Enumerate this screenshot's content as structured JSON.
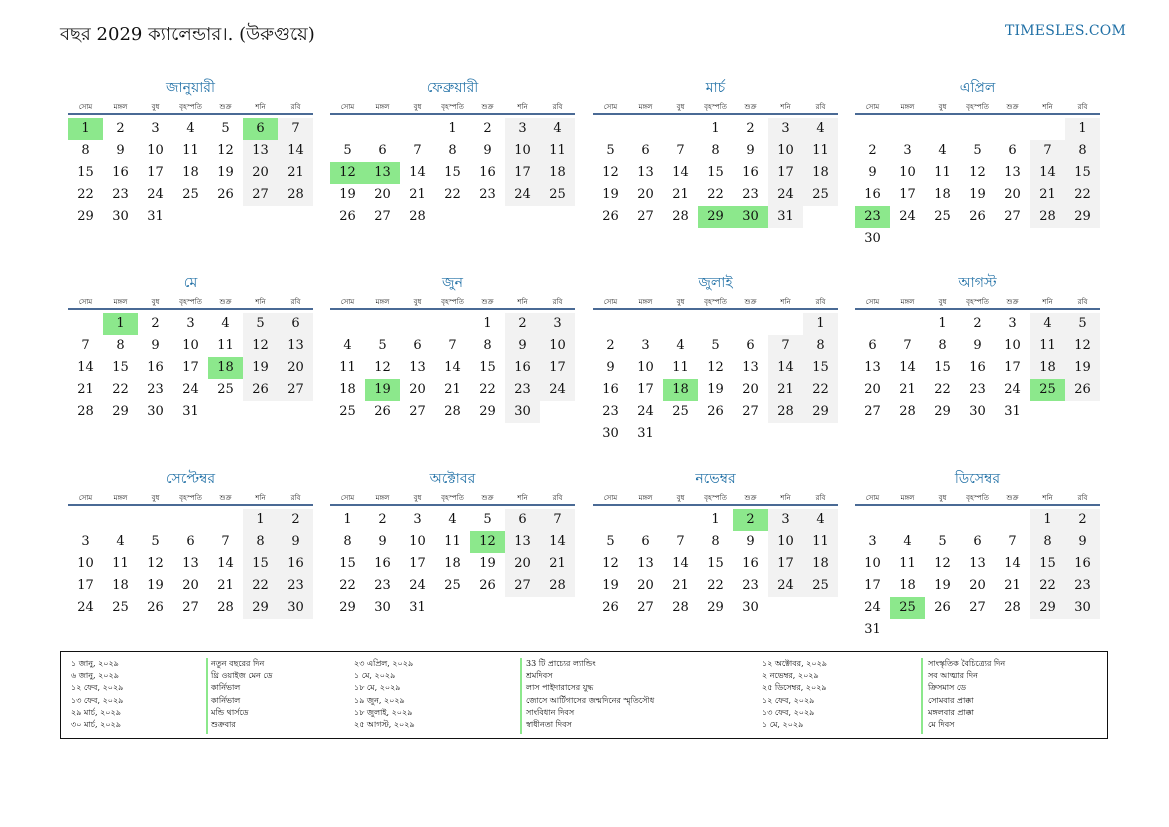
{
  "header": {
    "title": "বছর 2029 ক্যালেন্ডার।. (উরুগুয়ে)",
    "site": "TIMESLES.COM"
  },
  "weekdays": [
    "সোম",
    "মঙ্গল",
    "বুধ",
    "বৃহস্পতি",
    "শুক্র",
    "শনি",
    "রবি"
  ],
  "months": [
    {
      "name": "জানুয়ারী",
      "start": 0,
      "days": 31,
      "holidays": [
        1,
        6
      ]
    },
    {
      "name": "ফেব্রুয়ারী",
      "start": 3,
      "days": 28,
      "holidays": [
        12,
        13
      ]
    },
    {
      "name": "মার্চ",
      "start": 3,
      "days": 31,
      "holidays": [
        29,
        30
      ]
    },
    {
      "name": "এপ্রিল",
      "start": 6,
      "days": 30,
      "holidays": [
        23
      ]
    },
    {
      "name": "মে",
      "start": 1,
      "days": 31,
      "holidays": [
        1,
        18
      ]
    },
    {
      "name": "জুন",
      "start": 4,
      "days": 30,
      "holidays": [
        19
      ]
    },
    {
      "name": "জুলাই",
      "start": 6,
      "days": 31,
      "holidays": [
        18
      ]
    },
    {
      "name": "আগস্ট",
      "start": 2,
      "days": 31,
      "holidays": [
        25
      ]
    },
    {
      "name": "সেপ্টেম্বর",
      "start": 5,
      "days": 30,
      "holidays": []
    },
    {
      "name": "অক্টোবর",
      "start": 0,
      "days": 31,
      "holidays": [
        12
      ]
    },
    {
      "name": "নভেম্বর",
      "start": 3,
      "days": 30,
      "holidays": [
        2
      ]
    },
    {
      "name": "ডিসেম্বর",
      "start": 5,
      "days": 31,
      "holidays": [
        25
      ]
    }
  ],
  "legend": [
    {
      "dates": [
        "১ জানু, ২০২৯",
        "৬ জানু, ২০২৯",
        "১২ ফেব, ২০২৯",
        "১৩ ফেব, ২০২৯",
        "২৯ মার্চ, ২০২৯",
        "৩০ মার্চ, ২০২৯"
      ],
      "names": [
        "নতুন বছরের দিন",
        "থ্রি ওয়াইজ মেন ডে",
        "কার্নিভাল",
        "কার্নিভাল",
        "মন্ডি থার্সডে",
        "শুক্রবার"
      ]
    },
    {
      "dates": [
        "২৩ এপ্রিল, ২০২৯",
        "১ মে, ২০২৯",
        "১৮ মে, ২০২৯",
        "১৯ জুন, ২০২৯",
        "১৮ জুলাই, ২০২৯",
        "২৫ আগস্ট, ২০২৯"
      ],
      "names": [
        "33 টি প্রাচ্যের ল্যান্ডিং",
        "শ্রমদিবস",
        "লাস পাইদারাসের যুদ্ধ",
        "জোসে আর্টিগাসের জন্মদিনের স্মৃতিসৌধ",
        "সাংবিধান দিবস",
        "স্বাধীনতা দিবস"
      ]
    },
    {
      "dates": [
        "১২ অক্টোবর, ২০২৯",
        "২ নভেম্বর, ২০২৯",
        "২৫ ডিসেম্বর, ২০২৯",
        "১২ ফেব, ২০২৯",
        "১৩ ফেব, ২০২৯",
        "১ মে, ২০২৯"
      ],
      "names": [
        "সাংস্কৃতিক বৈচিত্র্যের দিন",
        "সব আত্মার দিন",
        "ক্রিসমাস ডে",
        "সোমবার প্রাক্কা",
        "মঙ্গলবার প্রাক্কা",
        "মে দিবস"
      ]
    }
  ]
}
